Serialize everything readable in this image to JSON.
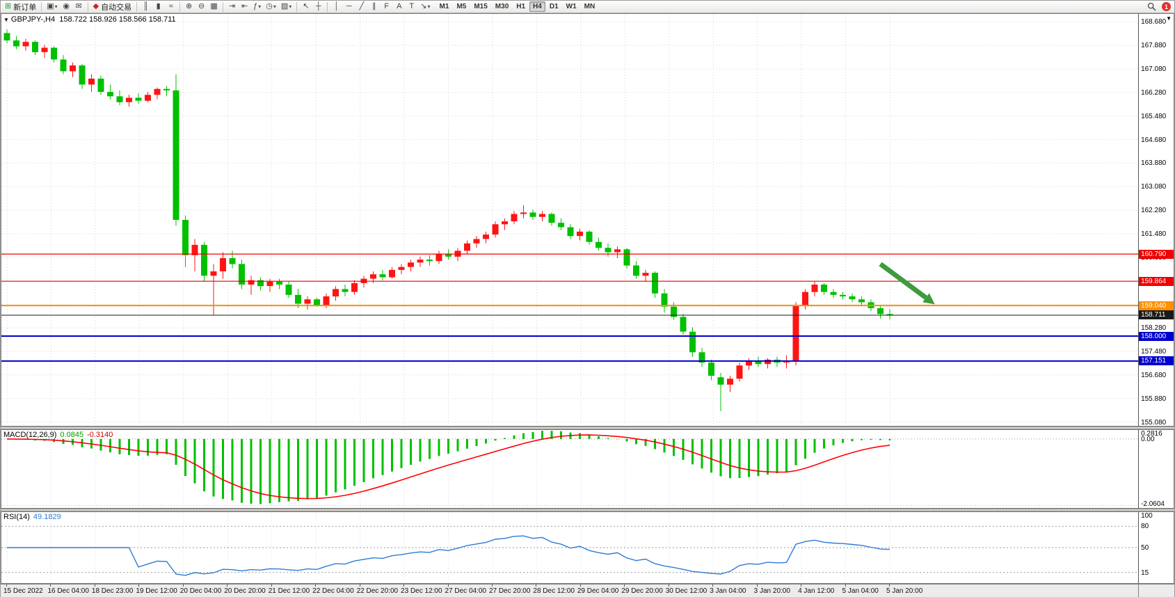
{
  "toolbar": {
    "items": [
      {
        "name": "new-order-button",
        "glyph": "⊞",
        "glyph_color": "#1a9c2e",
        "label": "新订单"
      },
      {
        "sep": true
      },
      {
        "name": "profiles-icon",
        "glyph": "▣",
        "drop": true
      },
      {
        "name": "community-icon",
        "glyph": "◉"
      },
      {
        "name": "messages-icon",
        "glyph": "✉"
      },
      {
        "sep": true
      },
      {
        "name": "auto-trading-button",
        "glyph": "◆",
        "glyph_color": "#cc2222",
        "label": "自动交易"
      },
      {
        "sep": true
      },
      {
        "name": "bar-chart-icon",
        "glyph": "║"
      },
      {
        "name": "candlestick-chart-icon",
        "glyph": "▮"
      },
      {
        "name": "line-chart-icon",
        "glyph": "≈"
      },
      {
        "sep": true
      },
      {
        "name": "zoom-in-icon",
        "glyph": "⊕"
      },
      {
        "name": "zoom-out-icon",
        "glyph": "⊖"
      },
      {
        "name": "tile-windows-icon",
        "glyph": "▦"
      },
      {
        "sep": true
      },
      {
        "name": "auto-scroll-icon",
        "glyph": "⇥"
      },
      {
        "name": "chart-shift-icon",
        "glyph": "⇤"
      },
      {
        "name": "indicators-icon",
        "glyph": "ƒ",
        "drop": true
      },
      {
        "name": "periods-icon",
        "glyph": "◷",
        "drop": true
      },
      {
        "name": "templates-icon",
        "glyph": "▨",
        "drop": true
      },
      {
        "sep": true
      },
      {
        "name": "cursor-icon",
        "glyph": "↖"
      },
      {
        "name": "crosshair-icon",
        "glyph": "┼"
      },
      {
        "sep": true
      },
      {
        "name": "vertical-line-icon",
        "glyph": "│"
      },
      {
        "name": "horizontal-line-icon",
        "glyph": "─"
      },
      {
        "name": "trendline-icon",
        "glyph": "╱"
      },
      {
        "name": "channel-icon",
        "glyph": "∥"
      },
      {
        "name": "fibonacci-icon",
        "glyph": "F"
      },
      {
        "name": "text-icon",
        "glyph": "A"
      },
      {
        "name": "label-icon",
        "glyph": "T"
      },
      {
        "name": "arrows-icon",
        "glyph": "↘",
        "drop": true
      }
    ],
    "timeframes": [
      "M1",
      "M5",
      "M15",
      "M30",
      "H1",
      "H4",
      "D1",
      "W1",
      "MN"
    ],
    "active_timeframe": "H4",
    "notification_badge": "1"
  },
  "window": {
    "header": {
      "symbol": "GBPJPY-,H4",
      "ohlc": "158.722 158.926 158.566 158.711"
    }
  },
  "chart_data": {
    "main": {
      "type": "candlestick",
      "symbol": "GBPJPY-",
      "timeframe": "H4",
      "ylim": [
        154.95,
        168.95
      ],
      "y_ticks": [
        "168.680",
        "167.880",
        "167.080",
        "166.280",
        "165.480",
        "164.680",
        "163.880",
        "163.080",
        "162.280",
        "161.480",
        "160.680",
        "159.880",
        "159.080",
        "158.280",
        "157.480",
        "156.680",
        "155.880",
        "155.080"
      ],
      "x_ticks": [
        "15 Dec 2022",
        "16 Dec 04:00",
        "18 Dec 23:00",
        "19 Dec 12:00",
        "20 Dec 04:00",
        "20 Dec 20:00",
        "21 Dec 12:00",
        "22 Dec 04:00",
        "22 Dec 20:00",
        "23 Dec 12:00",
        "27 Dec 04:00",
        "27 Dec 20:00",
        "28 Dec 12:00",
        "29 Dec 04:00",
        "29 Dec 20:00",
        "30 Dec 12:00",
        "3 Jan 04:00",
        "3 Jan 20:00",
        "4 Jan 12:00",
        "5 Jan 04:00",
        "5 Jan 20:00"
      ],
      "colors": {
        "up": "#ff1414",
        "down": "#00c000",
        "grid": "#d6d6d6"
      },
      "current_price": 158.711,
      "hlines": [
        {
          "price": 160.79,
          "label": "160.790",
          "color": "#ee0000",
          "stroke_w": 1.2
        },
        {
          "price": 159.864,
          "label": "159.864",
          "color": "#ee0000",
          "stroke_w": 1.2
        },
        {
          "price": 159.04,
          "label": "159.040",
          "color": "#ff9000",
          "stroke_w": 2
        },
        {
          "price": 158.711,
          "label": "158.711",
          "color": "#1a1a1a",
          "stroke_w": 1
        },
        {
          "price": 158.0,
          "label": "158.000",
          "color": "#0000cc",
          "stroke_w": 2
        },
        {
          "price": 157.151,
          "label": "157.151",
          "color": "#0000cc",
          "stroke_w": 2
        }
      ],
      "arrow_annotation": {
        "from_index": 93,
        "from_price": 160.45,
        "to_index": 98.8,
        "to_price": 159.08,
        "color": "#3e9b3e"
      },
      "candles": [
        [
          168.3,
          168.42,
          167.95,
          168.05
        ],
        [
          168.05,
          168.2,
          167.75,
          167.85
        ],
        [
          167.85,
          168.1,
          167.7,
          168.0
        ],
        [
          168.0,
          168.05,
          167.55,
          167.65
        ],
        [
          167.65,
          167.9,
          167.45,
          167.8
        ],
        [
          167.8,
          167.85,
          167.3,
          167.4
        ],
        [
          167.4,
          167.55,
          166.9,
          167.0
        ],
        [
          167.0,
          167.3,
          166.8,
          167.2
        ],
        [
          167.2,
          167.25,
          166.4,
          166.55
        ],
        [
          166.55,
          166.9,
          166.3,
          166.75
        ],
        [
          166.75,
          166.85,
          166.2,
          166.3
        ],
        [
          166.3,
          166.55,
          166.05,
          166.15
        ],
        [
          166.15,
          166.35,
          165.85,
          165.95
        ],
        [
          165.95,
          166.2,
          165.8,
          166.1
        ],
        [
          166.1,
          166.25,
          165.9,
          166.0
        ],
        [
          166.0,
          166.3,
          165.95,
          166.2
        ],
        [
          166.2,
          166.45,
          166.05,
          166.4
        ],
        [
          166.4,
          166.5,
          166.15,
          166.35
        ],
        [
          166.35,
          166.9,
          161.75,
          161.95
        ],
        [
          161.95,
          162.1,
          160.35,
          160.75
        ],
        [
          160.75,
          161.3,
          160.2,
          161.1
        ],
        [
          161.1,
          161.2,
          159.85,
          160.05
        ],
        [
          160.05,
          160.45,
          158.7,
          160.2
        ],
        [
          160.2,
          160.85,
          159.95,
          160.65
        ],
        [
          160.65,
          160.9,
          160.3,
          160.45
        ],
        [
          160.45,
          160.6,
          159.6,
          159.75
        ],
        [
          159.75,
          160.05,
          159.4,
          159.9
        ],
        [
          159.9,
          160.0,
          159.55,
          159.7
        ],
        [
          159.7,
          159.95,
          159.5,
          159.85
        ],
        [
          159.85,
          159.95,
          159.6,
          159.75
        ],
        [
          159.75,
          159.85,
          159.3,
          159.4
        ],
        [
          159.4,
          159.6,
          158.95,
          159.1
        ],
        [
          159.1,
          159.35,
          158.9,
          159.25
        ],
        [
          159.25,
          159.3,
          159.0,
          159.05
        ],
        [
          159.05,
          159.45,
          158.95,
          159.35
        ],
        [
          159.35,
          159.7,
          159.2,
          159.6
        ],
        [
          159.6,
          159.75,
          159.35,
          159.5
        ],
        [
          159.5,
          159.9,
          159.4,
          159.8
        ],
        [
          159.8,
          160.05,
          159.65,
          159.95
        ],
        [
          159.95,
          160.2,
          159.8,
          160.1
        ],
        [
          160.1,
          160.25,
          159.9,
          160.0
        ],
        [
          160.0,
          160.35,
          159.95,
          160.25
        ],
        [
          160.25,
          160.45,
          160.1,
          160.35
        ],
        [
          160.35,
          160.6,
          160.2,
          160.5
        ],
        [
          160.5,
          160.7,
          160.35,
          160.6
        ],
        [
          160.6,
          160.75,
          160.4,
          160.55
        ],
        [
          160.55,
          160.9,
          160.45,
          160.8
        ],
        [
          160.8,
          160.95,
          160.6,
          160.7
        ],
        [
          160.7,
          161.0,
          160.55,
          160.9
        ],
        [
          160.9,
          161.25,
          160.8,
          161.15
        ],
        [
          161.15,
          161.4,
          161.0,
          161.3
        ],
        [
          161.3,
          161.55,
          161.15,
          161.45
        ],
        [
          161.45,
          161.9,
          161.35,
          161.8
        ],
        [
          161.8,
          162.0,
          161.6,
          161.9
        ],
        [
          161.9,
          162.25,
          161.8,
          162.15
        ],
        [
          162.15,
          162.45,
          162.0,
          162.2
        ],
        [
          162.2,
          162.3,
          161.95,
          162.05
        ],
        [
          162.05,
          162.25,
          161.9,
          162.15
        ],
        [
          162.15,
          162.2,
          161.75,
          161.85
        ],
        [
          161.85,
          162.0,
          161.6,
          161.7
        ],
        [
          161.7,
          161.8,
          161.3,
          161.4
        ],
        [
          161.4,
          161.65,
          161.25,
          161.55
        ],
        [
          161.55,
          161.6,
          161.1,
          161.2
        ],
        [
          161.2,
          161.35,
          160.9,
          161.0
        ],
        [
          161.0,
          161.15,
          160.7,
          160.85
        ],
        [
          160.85,
          161.05,
          160.65,
          160.95
        ],
        [
          160.95,
          161.0,
          160.3,
          160.4
        ],
        [
          160.4,
          160.55,
          159.95,
          160.05
        ],
        [
          160.05,
          160.25,
          159.85,
          160.15
        ],
        [
          160.15,
          160.2,
          159.3,
          159.45
        ],
        [
          159.45,
          159.6,
          158.8,
          159.0
        ],
        [
          159.0,
          159.15,
          158.55,
          158.65
        ],
        [
          158.65,
          158.75,
          158.05,
          158.15
        ],
        [
          158.15,
          158.3,
          157.3,
          157.45
        ],
        [
          157.45,
          157.6,
          156.95,
          157.1
        ],
        [
          157.1,
          157.2,
          156.5,
          156.65
        ],
        [
          156.6,
          156.75,
          155.45,
          156.35
        ],
        [
          156.35,
          156.65,
          156.1,
          156.55
        ],
        [
          156.55,
          157.1,
          156.45,
          157.0
        ],
        [
          157.0,
          157.25,
          156.85,
          157.15
        ],
        [
          157.15,
          157.3,
          156.95,
          157.05
        ],
        [
          157.05,
          157.25,
          156.9,
          157.2
        ],
        [
          157.2,
          157.3,
          156.95,
          157.1
        ],
        [
          157.1,
          157.35,
          156.9,
          157.12
        ],
        [
          157.15,
          159.15,
          157.0,
          159.05
        ],
        [
          159.05,
          159.6,
          158.9,
          159.5
        ],
        [
          159.5,
          159.86,
          159.35,
          159.75
        ],
        [
          159.75,
          159.8,
          159.4,
          159.5
        ],
        [
          159.5,
          159.6,
          159.3,
          159.4
        ],
        [
          159.4,
          159.5,
          159.25,
          159.35
        ],
        [
          159.35,
          159.45,
          159.15,
          159.25
        ],
        [
          159.25,
          159.35,
          159.05,
          159.15
        ],
        [
          159.15,
          159.25,
          158.85,
          158.95
        ],
        [
          158.95,
          159.05,
          158.6,
          158.75
        ],
        [
          158.75,
          158.926,
          158.566,
          158.711
        ]
      ]
    },
    "macd": {
      "type": "macd",
      "label": "MACD(12,26,9)",
      "value_main": "0.0845",
      "value_signal": "-0.3140",
      "fast": 12,
      "slow": 26,
      "signal": 9,
      "axis_top": "0.2816",
      "axis_zero": "0.00",
      "axis_bottom": "-2.0604",
      "colors": {
        "histogram": "#00c000",
        "signal": "#ff0000"
      }
    },
    "rsi": {
      "type": "line",
      "label": "RSI(14)",
      "value": "49.1829",
      "period": 14,
      "levels": [
        80,
        50,
        15
      ],
      "axis_labels": [
        "100",
        "80",
        "50",
        "15"
      ],
      "color": "#2c7bd4"
    }
  }
}
